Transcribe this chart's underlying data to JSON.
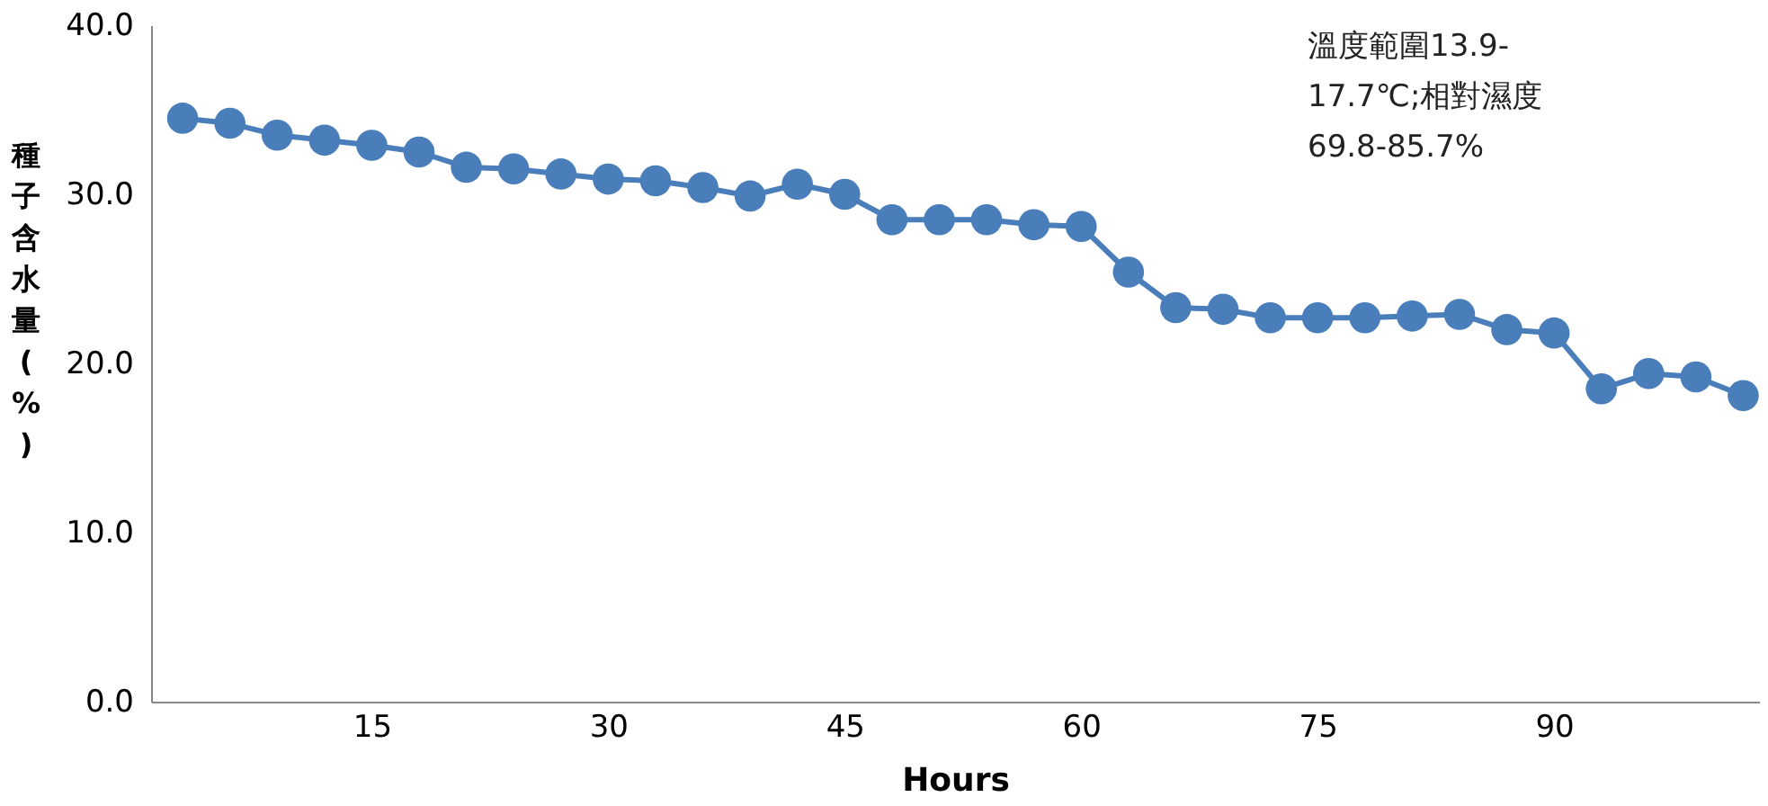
{
  "chart_data": {
    "type": "line",
    "xlabel": "Hours",
    "ylabel": "種子含水量(%)",
    "annotations": [
      "溫度範圍13.9-",
      "17.7℃;相對濕度",
      "69.8-85.7%"
    ],
    "x": [
      3,
      6,
      9,
      12,
      15,
      18,
      21,
      24,
      27,
      30,
      33,
      36,
      39,
      42,
      45,
      48,
      51,
      54,
      57,
      60,
      63,
      66,
      69,
      72,
      75,
      78,
      81,
      84,
      87,
      90,
      93,
      96,
      99,
      102
    ],
    "series": [
      {
        "color": "#4a7ebb",
        "values": [
          34.5,
          34.2,
          33.5,
          33.2,
          32.9,
          32.5,
          31.6,
          31.5,
          31.2,
          30.9,
          30.8,
          30.4,
          29.9,
          30.6,
          30.0,
          28.5,
          28.5,
          28.5,
          28.2,
          28.1,
          25.4,
          23.3,
          23.2,
          22.7,
          22.7,
          22.7,
          22.8,
          22.9,
          22.0,
          21.8,
          18.5,
          19.4,
          19.2,
          18.1
        ]
      }
    ],
    "xlim": [
      1,
      103
    ],
    "xticks": [
      15,
      30,
      45,
      60,
      75,
      90
    ],
    "ylim": [
      0,
      40
    ],
    "yticks": [
      {
        "value": 0,
        "label": "0.0"
      },
      {
        "value": 10,
        "label": "10.0"
      },
      {
        "value": 20,
        "label": "20.0"
      },
      {
        "value": 30,
        "label": "30.0"
      },
      {
        "value": 40,
        "label": "40.0"
      }
    ],
    "grid": false,
    "marker": "circle",
    "line_style": "solid"
  }
}
